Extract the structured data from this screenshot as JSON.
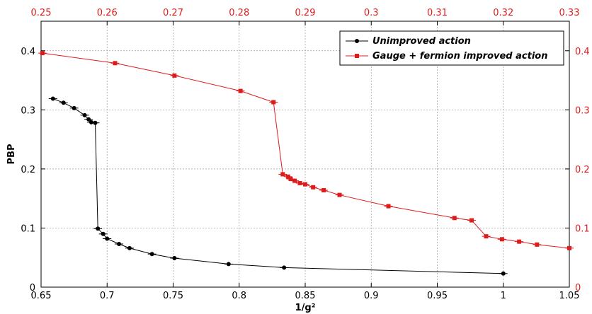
{
  "chart_data": {
    "type": "line",
    "xlabel": "1/g²",
    "ylabel": "PBP",
    "xlim": [
      0.65,
      1.05
    ],
    "ylim": [
      0,
      0.45
    ],
    "x2lim": [
      0.25,
      0.33
    ],
    "grid": true,
    "legend_position": "top-right",
    "x_ticks": [
      "0.65",
      "0.7",
      "0.75",
      "0.8",
      "0.85",
      "0.9",
      "0.95",
      "1",
      "1.05"
    ],
    "x2_ticks": [
      "0.25",
      "0.26",
      "0.27",
      "0.28",
      "0.29",
      "0.3",
      "0.31",
      "0.32",
      "0.33"
    ],
    "y_ticks": [
      "0",
      "0.1",
      "0.2",
      "0.3",
      "0.4"
    ],
    "y2_ticks": [
      "0",
      "0.1",
      "0.2",
      "0.3",
      "0.4"
    ],
    "series": [
      {
        "name": "Unimproved action",
        "color": "#000000",
        "marker": "circle",
        "axis": "bottom",
        "x": [
          0.659,
          0.667,
          0.675,
          0.683,
          0.686,
          0.688,
          0.691,
          0.693,
          0.697,
          0.7,
          0.709,
          0.717,
          0.734,
          0.751,
          0.792,
          0.834,
          1.0
        ],
        "y": [
          0.319,
          0.312,
          0.303,
          0.291,
          0.284,
          0.279,
          0.278,
          0.099,
          0.09,
          0.082,
          0.073,
          0.066,
          0.056,
          0.049,
          0.039,
          0.033,
          0.023
        ]
      },
      {
        "name": "Gauge + fermion improved action",
        "color": "#dd1c1c",
        "marker": "square",
        "axis": "top",
        "x": [
          0.2502,
          0.2612,
          0.2702,
          0.2802,
          0.2852,
          0.2866,
          0.2874,
          0.2878,
          0.2884,
          0.2892,
          0.29,
          0.2912,
          0.2928,
          0.2952,
          0.3026,
          0.3126,
          0.3152,
          0.3174,
          0.3198,
          0.3224,
          0.3251,
          0.33
        ],
        "y": [
          0.396,
          0.379,
          0.358,
          0.332,
          0.313,
          0.191,
          0.187,
          0.183,
          0.18,
          0.176,
          0.174,
          0.169,
          0.164,
          0.156,
          0.137,
          0.117,
          0.113,
          0.086,
          0.081,
          0.077,
          0.072,
          0.066
        ]
      }
    ]
  }
}
